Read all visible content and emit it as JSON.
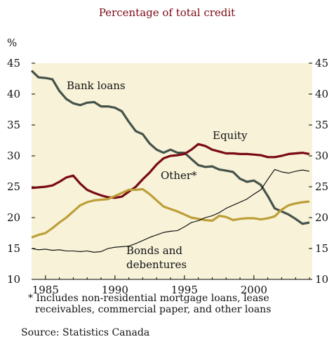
{
  "title": "Percentage of total credit",
  "y_unit": "%",
  "footnote": {
    "line1": "* Includes non-residential mortgage loans, lease",
    "line2": "receivables, commercial paper, and other loans"
  },
  "source": "Source: Statistics Canada",
  "colors": {
    "plot_bg": "#f7f2d8",
    "bank_loans": "#45524a",
    "equity": "#7a0a14",
    "other": "#bd9f38",
    "bonds": "#000000",
    "title": "#7a0a14"
  },
  "chart_data": {
    "type": "line",
    "title": "Percentage of total credit",
    "xlabel": "",
    "ylabel": "%",
    "xlim": [
      1984,
      2004.2
    ],
    "ylim": [
      10,
      45
    ],
    "x_ticks": [
      1985,
      1990,
      1995,
      2000
    ],
    "y_ticks": [
      10,
      15,
      20,
      25,
      30,
      35,
      40,
      45
    ],
    "grid": false,
    "dual_y_axis": true,
    "series": [
      {
        "name": "Bank loans",
        "label_line1": "Bank loans",
        "color": "#45524a",
        "points": [
          [
            1984.0,
            43.8
          ],
          [
            1984.5,
            42.7
          ],
          [
            1985.0,
            42.6
          ],
          [
            1985.5,
            42.4
          ],
          [
            1986.0,
            40.5
          ],
          [
            1986.5,
            39.2
          ],
          [
            1987.0,
            38.5
          ],
          [
            1987.5,
            38.2
          ],
          [
            1988.0,
            38.6
          ],
          [
            1988.5,
            38.7
          ],
          [
            1989.0,
            38.0
          ],
          [
            1989.5,
            38.0
          ],
          [
            1990.0,
            37.8
          ],
          [
            1990.5,
            37.2
          ],
          [
            1991.0,
            35.5
          ],
          [
            1991.5,
            34.0
          ],
          [
            1992.0,
            33.5
          ],
          [
            1992.5,
            32.0
          ],
          [
            1993.0,
            31.0
          ],
          [
            1993.5,
            30.5
          ],
          [
            1994.0,
            31.0
          ],
          [
            1994.5,
            30.5
          ],
          [
            1995.0,
            30.5
          ],
          [
            1995.5,
            29.5
          ],
          [
            1996.0,
            28.5
          ],
          [
            1996.5,
            28.2
          ],
          [
            1997.0,
            28.3
          ],
          [
            1997.5,
            27.8
          ],
          [
            1998.0,
            27.6
          ],
          [
            1998.5,
            27.4
          ],
          [
            1999.0,
            26.3
          ],
          [
            1999.5,
            25.8
          ],
          [
            2000.0,
            26.0
          ],
          [
            2000.5,
            25.3
          ],
          [
            2001.0,
            23.5
          ],
          [
            2001.5,
            21.5
          ],
          [
            2002.0,
            21.0
          ],
          [
            2002.5,
            20.5
          ],
          [
            2003.0,
            19.8
          ],
          [
            2003.5,
            19.0
          ],
          [
            2004.0,
            19.2
          ]
        ]
      },
      {
        "name": "Equity",
        "label_line1": "Equity",
        "color": "#7a0a14",
        "points": [
          [
            1984.0,
            24.8
          ],
          [
            1984.5,
            24.9
          ],
          [
            1985.0,
            25.0
          ],
          [
            1985.5,
            25.2
          ],
          [
            1986.0,
            25.8
          ],
          [
            1986.5,
            26.5
          ],
          [
            1987.0,
            26.8
          ],
          [
            1987.5,
            25.5
          ],
          [
            1988.0,
            24.5
          ],
          [
            1988.5,
            24.0
          ],
          [
            1989.0,
            23.6
          ],
          [
            1989.5,
            23.3
          ],
          [
            1990.0,
            23.2
          ],
          [
            1990.5,
            23.4
          ],
          [
            1991.0,
            24.2
          ],
          [
            1991.5,
            25.0
          ],
          [
            1992.0,
            26.2
          ],
          [
            1992.5,
            27.3
          ],
          [
            1993.0,
            28.6
          ],
          [
            1993.5,
            29.6
          ],
          [
            1994.0,
            30.0
          ],
          [
            1994.5,
            30.1
          ],
          [
            1995.0,
            30.3
          ],
          [
            1995.5,
            31.0
          ],
          [
            1996.0,
            31.9
          ],
          [
            1996.5,
            31.6
          ],
          [
            1997.0,
            31.0
          ],
          [
            1997.5,
            30.7
          ],
          [
            1998.0,
            30.4
          ],
          [
            1998.5,
            30.4
          ],
          [
            1999.0,
            30.3
          ],
          [
            1999.5,
            30.3
          ],
          [
            2000.0,
            30.2
          ],
          [
            2000.5,
            30.1
          ],
          [
            2001.0,
            29.8
          ],
          [
            2001.5,
            29.8
          ],
          [
            2002.0,
            30.0
          ],
          [
            2002.5,
            30.3
          ],
          [
            2003.0,
            30.4
          ],
          [
            2003.5,
            30.5
          ],
          [
            2004.0,
            30.3
          ]
        ]
      },
      {
        "name": "Other*",
        "label_line1": "Other*",
        "color": "#bd9f38",
        "points": [
          [
            1984.0,
            16.8
          ],
          [
            1984.5,
            17.2
          ],
          [
            1985.0,
            17.5
          ],
          [
            1985.5,
            18.3
          ],
          [
            1986.0,
            19.2
          ],
          [
            1986.5,
            20.0
          ],
          [
            1987.0,
            21.0
          ],
          [
            1987.5,
            22.0
          ],
          [
            1988.0,
            22.5
          ],
          [
            1988.5,
            22.8
          ],
          [
            1989.0,
            22.9
          ],
          [
            1989.5,
            23.0
          ],
          [
            1990.0,
            23.5
          ],
          [
            1990.5,
            24.0
          ],
          [
            1991.0,
            24.5
          ],
          [
            1991.5,
            24.5
          ],
          [
            1992.0,
            24.6
          ],
          [
            1992.5,
            23.8
          ],
          [
            1993.0,
            22.8
          ],
          [
            1993.5,
            21.8
          ],
          [
            1994.0,
            21.4
          ],
          [
            1994.5,
            21.0
          ],
          [
            1995.0,
            20.5
          ],
          [
            1995.5,
            20.0
          ],
          [
            1996.0,
            19.8
          ],
          [
            1996.5,
            19.6
          ],
          [
            1997.0,
            19.5
          ],
          [
            1997.5,
            20.3
          ],
          [
            1998.0,
            20.1
          ],
          [
            1998.5,
            19.6
          ],
          [
            1999.0,
            19.8
          ],
          [
            1999.5,
            19.9
          ],
          [
            2000.0,
            19.9
          ],
          [
            2000.5,
            19.7
          ],
          [
            2001.0,
            19.9
          ],
          [
            2001.5,
            20.2
          ],
          [
            2002.0,
            21.3
          ],
          [
            2002.5,
            22.0
          ],
          [
            2003.0,
            22.3
          ],
          [
            2003.5,
            22.5
          ],
          [
            2004.0,
            22.6
          ]
        ]
      },
      {
        "name": "Bonds and debentures",
        "label_line1": "Bonds and",
        "label_line2": "debentures",
        "color": "#000000",
        "points": [
          [
            1984.0,
            15.0
          ],
          [
            1984.5,
            14.8
          ],
          [
            1985.0,
            14.9
          ],
          [
            1985.5,
            14.7
          ],
          [
            1986.0,
            14.8
          ],
          [
            1986.5,
            14.6
          ],
          [
            1987.0,
            14.6
          ],
          [
            1987.5,
            14.5
          ],
          [
            1988.0,
            14.6
          ],
          [
            1988.5,
            14.4
          ],
          [
            1989.0,
            14.5
          ],
          [
            1989.5,
            15.0
          ],
          [
            1990.0,
            15.2
          ],
          [
            1990.5,
            15.3
          ],
          [
            1991.0,
            15.4
          ],
          [
            1991.5,
            15.8
          ],
          [
            1992.0,
            16.3
          ],
          [
            1992.5,
            16.8
          ],
          [
            1993.0,
            17.2
          ],
          [
            1993.5,
            17.6
          ],
          [
            1994.0,
            17.8
          ],
          [
            1994.5,
            17.9
          ],
          [
            1995.0,
            18.5
          ],
          [
            1995.5,
            19.2
          ],
          [
            1996.0,
            19.5
          ],
          [
            1996.5,
            20.0
          ],
          [
            1997.0,
            20.3
          ],
          [
            1997.5,
            20.8
          ],
          [
            1998.0,
            21.5
          ],
          [
            1998.5,
            22.0
          ],
          [
            1999.0,
            22.5
          ],
          [
            1999.5,
            23.0
          ],
          [
            2000.0,
            23.8
          ],
          [
            2000.5,
            24.5
          ],
          [
            2001.0,
            26.2
          ],
          [
            2001.5,
            27.8
          ],
          [
            2002.0,
            27.4
          ],
          [
            2002.5,
            27.2
          ],
          [
            2003.0,
            27.5
          ],
          [
            2003.5,
            27.7
          ],
          [
            2004.0,
            27.5
          ]
        ]
      }
    ]
  }
}
